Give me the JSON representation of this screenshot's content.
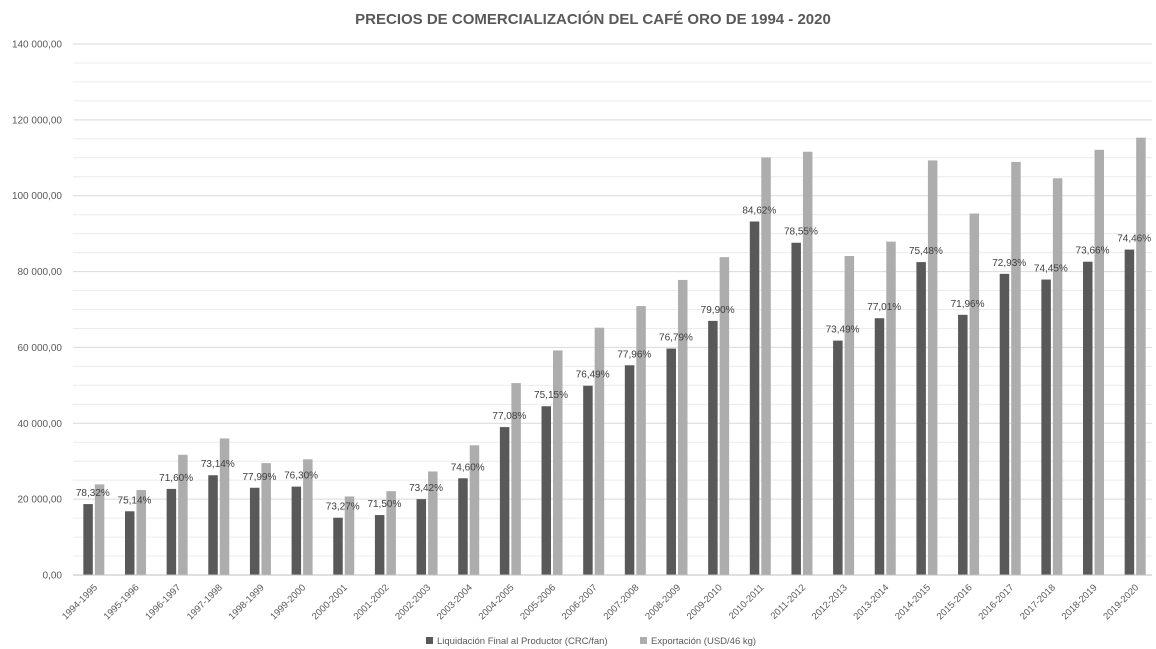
{
  "chart_data": {
    "type": "bar",
    "title": "PRECIOS DE COMERCIALIZACIÓN DEL CAFÉ ORO DE 1994 - 2020",
    "xlabel": "",
    "ylabel": "",
    "ylim": [
      0,
      140000
    ],
    "yticks": [
      0,
      20000,
      40000,
      60000,
      80000,
      100000,
      120000,
      140000
    ],
    "ytick_labels": [
      "0,00",
      "20 000,00",
      "40 000,00",
      "60 000,00",
      "80 000,00",
      "100 000,00",
      "120 000,00",
      "140 000,00"
    ],
    "grid": true,
    "legend_position": "bottom",
    "categories": [
      "1994-1995",
      "1995-1996",
      "1996-1997",
      "1997-1998",
      "1998-1999",
      "1999-2000",
      "2000-2001",
      "2001-2002",
      "2002-2003",
      "2003-2004",
      "2004-2005",
      "2005-2006",
      "2006-2007",
      "2007-2008",
      "2008-2009",
      "2009-2010",
      "2010-2011",
      "2011-2012",
      "2012-2013",
      "2013-2014",
      "2014-2015",
      "2015-2016",
      "2016-2017",
      "2017-2018",
      "2018-2019",
      "2019-2020"
    ],
    "series": [
      {
        "name": "Liquidación Final al Productor (CRC/fan)",
        "color": "#595959",
        "values": [
          18700,
          16800,
          22700,
          26300,
          23000,
          23300,
          15100,
          15800,
          20000,
          25500,
          39000,
          44500,
          49900,
          55300,
          59700,
          67000,
          93200,
          87600,
          61800,
          67700,
          82500,
          68600,
          79400,
          77900,
          82600,
          85800
        ]
      },
      {
        "name": "Exportación (USD/46 kg)",
        "color": "#adadad",
        "values": [
          23900,
          22400,
          31700,
          36000,
          29500,
          30500,
          20700,
          22100,
          27300,
          34200,
          50600,
          59200,
          65200,
          70900,
          77800,
          83800,
          110100,
          111600,
          84100,
          87900,
          109300,
          95300,
          108900,
          104600,
          112100,
          115300
        ]
      }
    ],
    "data_labels": [
      "78,32%",
      "75,14%",
      "71,60%",
      "73,14%",
      "77,99%",
      "76,30%",
      "73,27%",
      "71,50%",
      "73,42%",
      "74,60%",
      "77,08%",
      "75,15%",
      "76,49%",
      "77,96%",
      "76,79%",
      "79,90%",
      "84,62%",
      "78,55%",
      "73,49%",
      "77,01%",
      "75,48%",
      "71,96%",
      "72,93%",
      "74,45%",
      "73,66%",
      "74,46%"
    ]
  }
}
